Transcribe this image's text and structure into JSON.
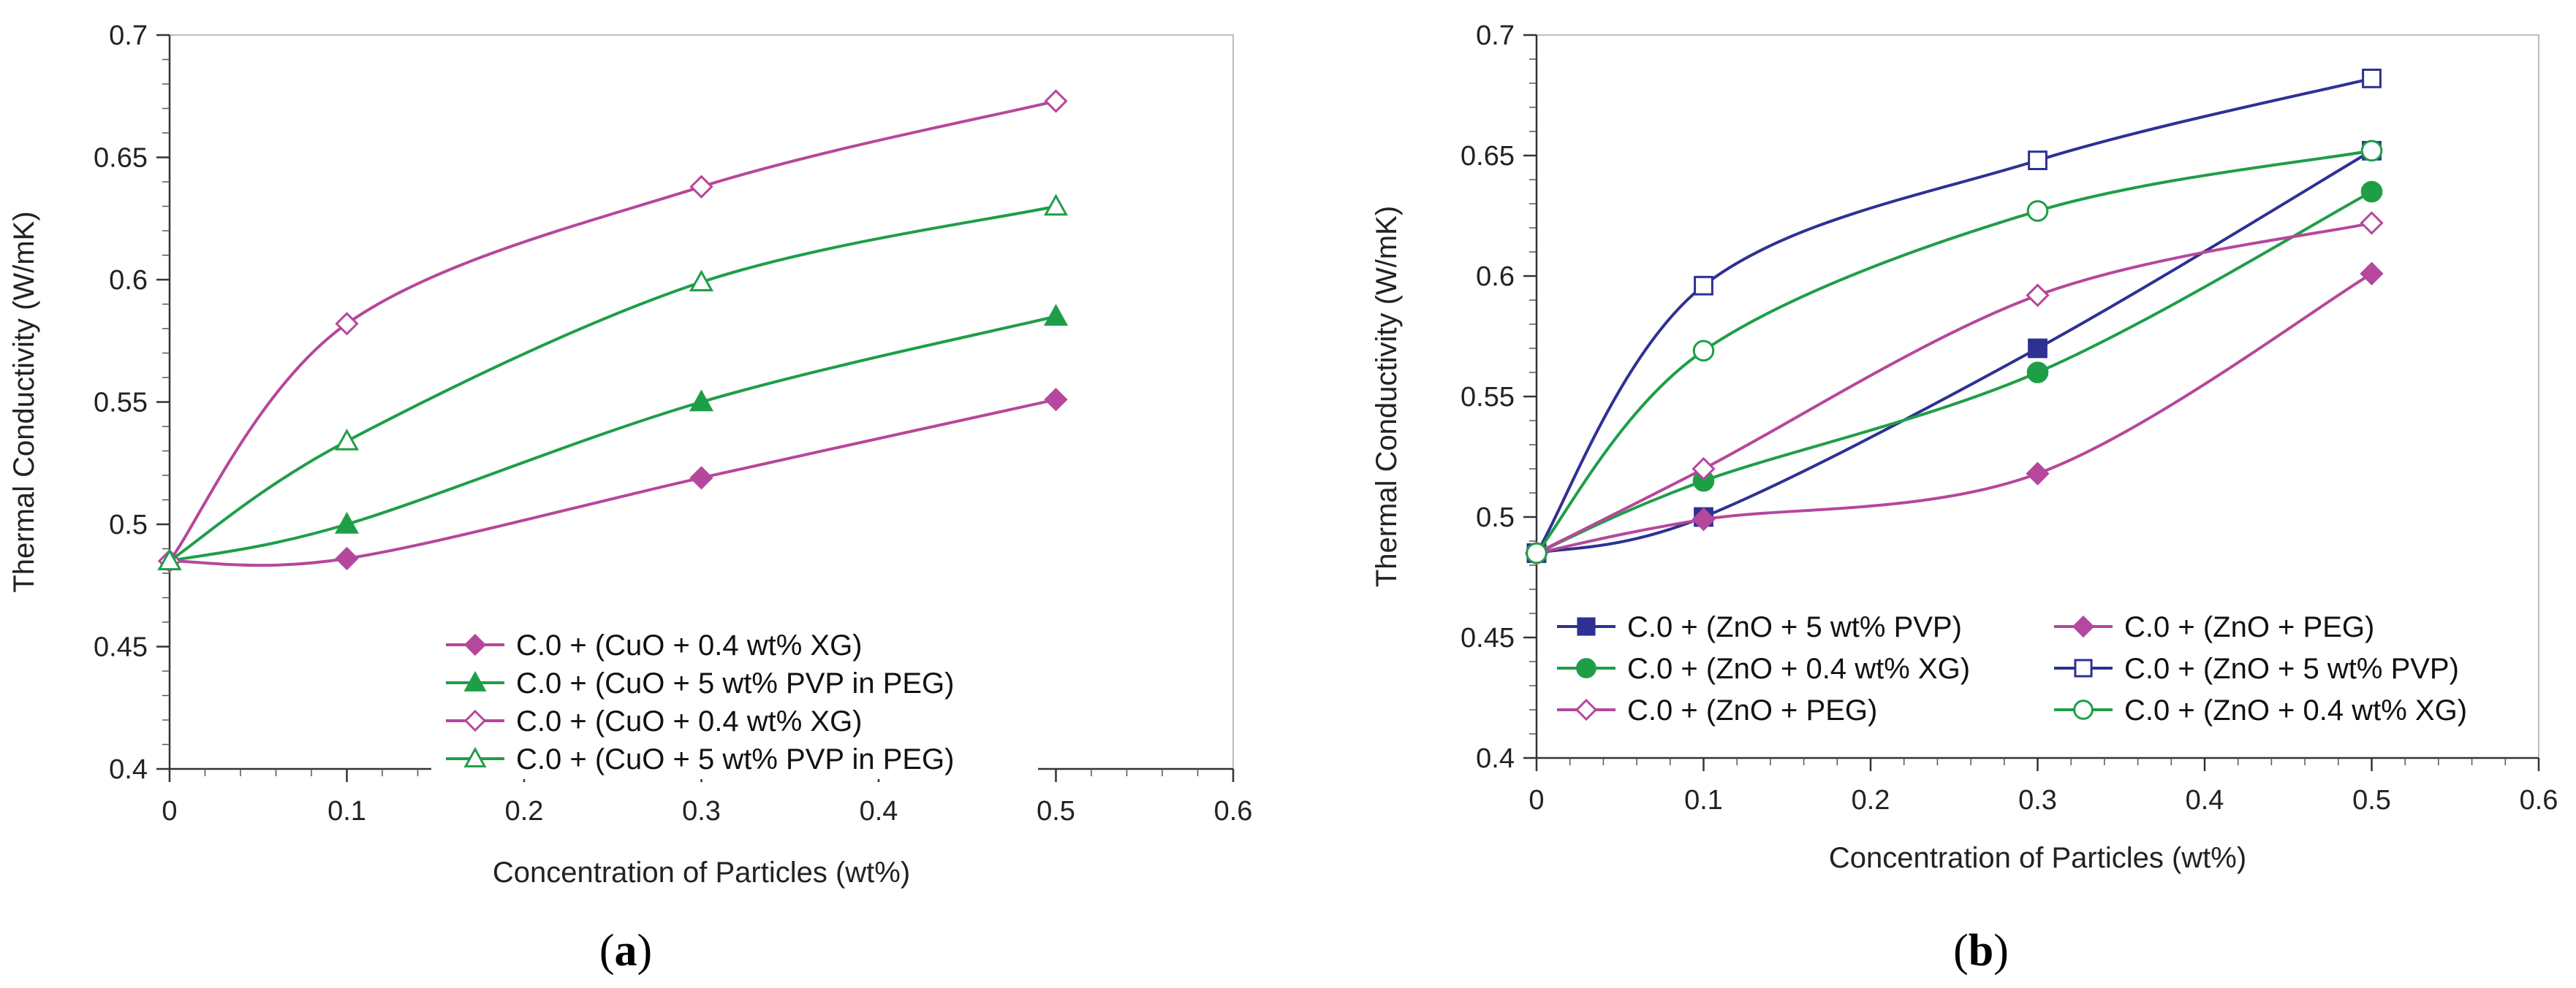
{
  "chart_data": [
    {
      "type": "line",
      "panel": "a",
      "caption_open": "(",
      "caption_letter": "a",
      "caption_close": ")",
      "xlabel": "Concentration of Particles (wt%)",
      "ylabel": "Thermal Conductivity (W/mK)",
      "xlim": [
        0,
        0.6
      ],
      "ylim": [
        0.4,
        0.7
      ],
      "xticks": [
        0,
        0.1,
        0.2,
        0.3,
        0.4,
        0.5,
        0.6
      ],
      "xtick_labels": [
        "0",
        "0.1",
        "0.2",
        "0.3",
        "0.4",
        "0.5",
        "0.6"
      ],
      "yticks": [
        0.4,
        0.45,
        0.5,
        0.55,
        0.6,
        0.65,
        0.7
      ],
      "ytick_labels": [
        "0.4",
        "0.45",
        "0.5",
        "0.55",
        "0.6",
        "0.65",
        "0.7"
      ],
      "grid": false,
      "legend_position": "bottom-right",
      "series": [
        {
          "name": "C.0 + (CuO + 0.4 wt% XG)",
          "color": "#b5479c",
          "marker": "diamond",
          "filled": true,
          "x": [
            0,
            0.1,
            0.3,
            0.5
          ],
          "values": [
            0.485,
            0.486,
            0.519,
            0.551
          ]
        },
        {
          "name": "C.0 + (CuO + 5 wt% PVP in PEG)",
          "color": "#1f9e48",
          "marker": "triangle",
          "filled": true,
          "x": [
            0,
            0.1,
            0.3,
            0.5
          ],
          "values": [
            0.485,
            0.5,
            0.55,
            0.585
          ]
        },
        {
          "name": "C.0 + (CuO + 0.4 wt% XG)",
          "color": "#b5479c",
          "marker": "diamond",
          "filled": false,
          "x": [
            0,
            0.1,
            0.3,
            0.5
          ],
          "values": [
            0.485,
            0.582,
            0.638,
            0.673
          ]
        },
        {
          "name": "C.0 + (CuO + 5 wt% PVP in PEG)",
          "color": "#1f9e48",
          "marker": "triangle",
          "filled": false,
          "x": [
            0,
            0.1,
            0.3,
            0.5
          ],
          "values": [
            0.485,
            0.534,
            0.599,
            0.63
          ]
        }
      ]
    },
    {
      "type": "line",
      "panel": "b",
      "caption_open": "(",
      "caption_letter": "b",
      "caption_close": ")",
      "xlabel": "Concentration of Particles (wt%)",
      "ylabel": "Thermal Conductivity (W/mK)",
      "xlim": [
        0,
        0.6
      ],
      "ylim": [
        0.4,
        0.7
      ],
      "xticks": [
        0,
        0.1,
        0.2,
        0.3,
        0.4,
        0.5,
        0.6
      ],
      "xtick_labels": [
        "0",
        "0.1",
        "0.2",
        "0.3",
        "0.4",
        "0.5",
        "0.6"
      ],
      "yticks": [
        0.4,
        0.45,
        0.5,
        0.55,
        0.6,
        0.65,
        0.7
      ],
      "ytick_labels": [
        "0.4",
        "0.45",
        "0.5",
        "0.55",
        "0.6",
        "0.65",
        "0.7"
      ],
      "grid": false,
      "legend_position": "bottom",
      "series": [
        {
          "name": "C.0 + (ZnO + 5 wt% PVP)",
          "color": "#2e3192",
          "marker": "square",
          "filled": true,
          "x": [
            0,
            0.1,
            0.3,
            0.5
          ],
          "values": [
            0.485,
            0.5,
            0.57,
            0.652
          ]
        },
        {
          "name": "C.0 + (ZnO + PEG)",
          "color": "#b5479c",
          "marker": "diamond",
          "filled": true,
          "x": [
            0,
            0.1,
            0.3,
            0.5
          ],
          "values": [
            0.485,
            0.499,
            0.518,
            0.601
          ]
        },
        {
          "name": "C.0 + (ZnO + 0.4 wt% XG)",
          "color": "#1f9e48",
          "marker": "circle",
          "filled": true,
          "x": [
            0,
            0.1,
            0.3,
            0.5
          ],
          "values": [
            0.485,
            0.515,
            0.56,
            0.635
          ]
        },
        {
          "name": "C.0 + (ZnO + 5 wt% PVP)",
          "color": "#2e3192",
          "marker": "square",
          "filled": false,
          "x": [
            0,
            0.1,
            0.3,
            0.5
          ],
          "values": [
            0.485,
            0.596,
            0.648,
            0.682
          ]
        },
        {
          "name": "C.0 + (ZnO + PEG)",
          "color": "#b5479c",
          "marker": "diamond",
          "filled": false,
          "x": [
            0,
            0.1,
            0.3,
            0.5
          ],
          "values": [
            0.485,
            0.52,
            0.592,
            0.622
          ]
        },
        {
          "name": "C.0 + (ZnO + 0.4 wt% XG)",
          "color": "#1f9e48",
          "marker": "circle",
          "filled": false,
          "x": [
            0,
            0.1,
            0.3,
            0.5
          ],
          "values": [
            0.485,
            0.569,
            0.627,
            0.652
          ]
        }
      ]
    }
  ]
}
